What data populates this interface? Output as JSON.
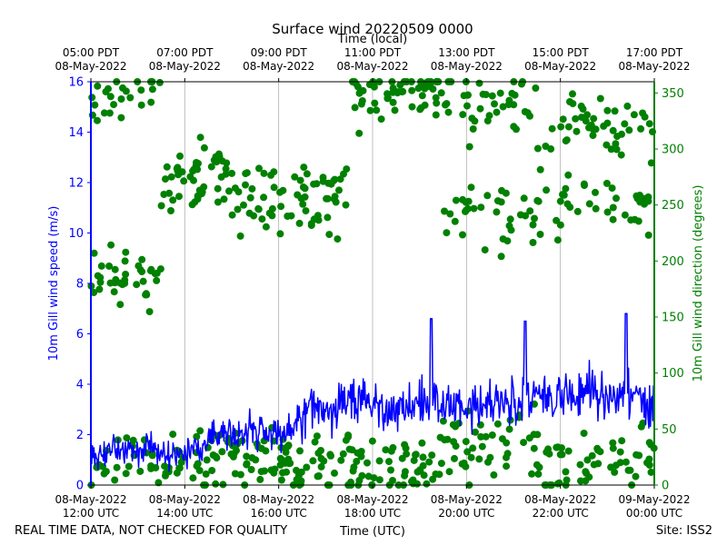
{
  "chart_data": {
    "type": "line+scatter",
    "title": "Surface wind 20220509 0000",
    "top_axis_label": "Time (local)",
    "bottom_axis_label": "Time (UTC)",
    "footer_left": "REAL TIME DATA, NOT CHECKED FOR QUALITY",
    "footer_right": "Site: ISS2",
    "x_range_hours_utc": [
      12,
      24
    ],
    "top_ticks": [
      {
        "h": 12,
        "l1": "05:00 PDT",
        "l2": "08-May-2022"
      },
      {
        "h": 14,
        "l1": "07:00 PDT",
        "l2": "08-May-2022"
      },
      {
        "h": 16,
        "l1": "09:00 PDT",
        "l2": "08-May-2022"
      },
      {
        "h": 18,
        "l1": "11:00 PDT",
        "l2": "08-May-2022"
      },
      {
        "h": 20,
        "l1": "13:00 PDT",
        "l2": "08-May-2022"
      },
      {
        "h": 22,
        "l1": "15:00 PDT",
        "l2": "08-May-2022"
      },
      {
        "h": 24,
        "l1": "17:00 PDT",
        "l2": "08-May-2022"
      }
    ],
    "bottom_ticks": [
      {
        "h": 12,
        "l1": "08-May-2022",
        "l2": "12:00 UTC"
      },
      {
        "h": 14,
        "l1": "08-May-2022",
        "l2": "14:00 UTC"
      },
      {
        "h": 16,
        "l1": "08-May-2022",
        "l2": "16:00 UTC"
      },
      {
        "h": 18,
        "l1": "08-May-2022",
        "l2": "18:00 UTC"
      },
      {
        "h": 20,
        "l1": "08-May-2022",
        "l2": "20:00 UTC"
      },
      {
        "h": 22,
        "l1": "08-May-2022",
        "l2": "22:00 UTC"
      },
      {
        "h": 24,
        "l1": "09-May-2022",
        "l2": "00:00 UTC"
      }
    ],
    "left_axis": {
      "label": "10m Gill wind speed (m/s)",
      "range": [
        0,
        16
      ],
      "ticks": [
        0,
        2,
        4,
        6,
        8,
        10,
        12,
        14,
        16
      ],
      "color": "#0000ff"
    },
    "right_axis": {
      "label": "10m Gill wind direction (degrees)",
      "range": [
        0,
        360
      ],
      "ticks": [
        0,
        50,
        100,
        150,
        200,
        250,
        300,
        350
      ],
      "color": "#008000"
    },
    "series": [
      {
        "name": "10m Gill wind speed",
        "axis": "left",
        "style": "line",
        "color": "#0000ff",
        "x_hours": [
          12.0,
          12.25,
          12.5,
          12.75,
          13.0,
          13.25,
          13.5,
          13.75,
          14.0,
          14.25,
          14.5,
          14.75,
          15.0,
          15.25,
          15.5,
          15.75,
          16.0,
          16.25,
          16.5,
          16.75,
          17.0,
          17.25,
          17.5,
          17.75,
          18.0,
          18.25,
          18.5,
          18.75,
          19.0,
          19.25,
          19.5,
          19.75,
          20.0,
          20.25,
          20.5,
          20.75,
          21.0,
          21.25,
          21.5,
          21.75,
          22.0,
          22.25,
          22.5,
          22.75,
          23.0,
          23.25,
          23.5,
          23.75,
          24.0
        ],
        "values": [
          1.0,
          1.3,
          1.5,
          1.3,
          1.4,
          1.6,
          1.3,
          1.2,
          1.3,
          1.4,
          1.8,
          2.0,
          2.1,
          2.2,
          2.3,
          2.2,
          2.0,
          2.3,
          2.7,
          3.1,
          3.0,
          3.1,
          3.4,
          3.5,
          3.2,
          3.0,
          3.0,
          3.2,
          3.4,
          3.3,
          3.1,
          3.1,
          3.0,
          3.1,
          3.2,
          3.5,
          3.4,
          3.5,
          3.6,
          3.4,
          3.5,
          3.4,
          3.6,
          3.8,
          3.5,
          3.7,
          3.5,
          3.4,
          3.3
        ],
        "notes": "high-frequency noisy trace; envelope approx. 0.2-4.5 m/s with peaks near 6.6 at ~19.2 h and ~6.8 at ~23.4 h"
      },
      {
        "name": "10m Gill wind direction",
        "axis": "right",
        "style": "scatter",
        "color": "#008000",
        "clusters": [
          {
            "from_h": 12.0,
            "to_h": 13.5,
            "centers_deg": [
              20,
              185,
              350
            ],
            "spread_deg": 25
          },
          {
            "from_h": 13.5,
            "to_h": 15.0,
            "centers_deg": [
              275,
              20
            ],
            "spread_deg": 30
          },
          {
            "from_h": 15.0,
            "to_h": 17.5,
            "centers_deg": [
              255,
              20
            ],
            "spread_deg": 30
          },
          {
            "from_h": 17.5,
            "to_h": 19.5,
            "centers_deg": [
              350,
              15
            ],
            "spread_deg": 25
          },
          {
            "from_h": 19.5,
            "to_h": 21.5,
            "centers_deg": [
              30,
              340,
              240
            ],
            "spread_deg": 30
          },
          {
            "from_h": 21.5,
            "to_h": 24.0,
            "centers_deg": [
              250,
              320,
              20
            ],
            "spread_deg": 30
          }
        ]
      }
    ]
  }
}
